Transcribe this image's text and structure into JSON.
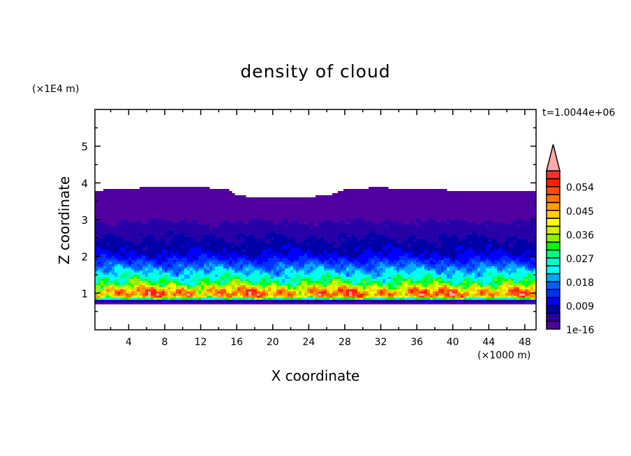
{
  "chart_data": {
    "type": "heatmap",
    "title": "density of cloud",
    "xlabel": "X coordinate",
    "ylabel": "Z coordinate",
    "x_unit": "(×1000 m)",
    "y_unit": "(×1E4 m)",
    "time_label": "t=1.0044e+06",
    "xlim": [
      0.25,
      49.25
    ],
    "ylim": [
      0,
      6
    ],
    "x_ticks": [
      4,
      8,
      12,
      16,
      20,
      24,
      28,
      32,
      36,
      40,
      44,
      48
    ],
    "y_ticks": [
      1,
      2,
      3,
      4,
      5
    ],
    "colorbar": {
      "levels_min": 0,
      "levels_step": 0.003,
      "levels_max": 0.06,
      "labels": [
        "1e-16",
        "0.009",
        "0.018",
        "0.027",
        "0.036",
        "0.045",
        "0.054"
      ],
      "colors": [
        "#5000a0",
        "#2800a8",
        "#0000a8",
        "#0000ff",
        "#0030ff",
        "#0060ff",
        "#00a8ff",
        "#00ffff",
        "#00ffd0",
        "#00ff80",
        "#00ff00",
        "#90f000",
        "#d0f000",
        "#ffff00",
        "#ffd000",
        "#ffa000",
        "#ff7800",
        "#ff5000",
        "#ff2000",
        "#ff3030"
      ],
      "over_color": "#ffaaaa"
    },
    "cloud_base_z": 0.72,
    "mean_profile": {
      "z": [
        0.72,
        0.78,
        0.82,
        0.88,
        0.95,
        1.05,
        1.15,
        1.25,
        1.4,
        1.6,
        1.8,
        2.0,
        2.2,
        2.5,
        2.8,
        3.1,
        3.5,
        3.9
      ],
      "density": [
        0.001,
        0.005,
        0.02,
        0.042,
        0.05,
        0.048,
        0.04,
        0.032,
        0.026,
        0.02,
        0.015,
        0.01,
        0.008,
        0.006,
        0.004,
        0.002,
        0.001,
        0.0005
      ]
    },
    "cloud_top": {
      "x": [
        0.25,
        3,
        6,
        12,
        15,
        16,
        20,
        24,
        27,
        28,
        32,
        40,
        45,
        49.25
      ],
      "z": [
        3.78,
        3.85,
        3.87,
        3.87,
        3.85,
        3.65,
        3.6,
        3.62,
        3.7,
        3.85,
        3.87,
        3.8,
        3.75,
        3.75
      ]
    }
  }
}
